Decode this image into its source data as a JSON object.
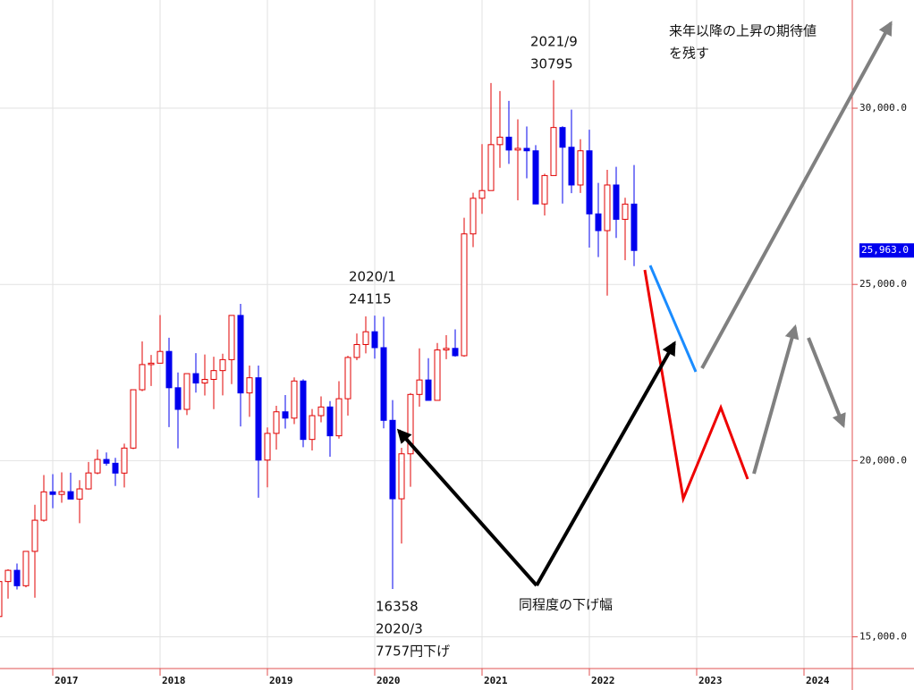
{
  "chart_data": {
    "type": "candlestick",
    "categories": [
      null,
      null,
      null,
      null,
      null,
      null,
      "2017",
      null,
      null,
      null,
      null,
      null,
      null,
      null,
      null,
      null,
      null,
      null,
      "2018",
      null,
      null,
      null,
      null,
      null,
      null,
      null,
      null,
      null,
      null,
      null,
      "2019",
      null,
      null,
      null,
      null,
      null,
      null,
      null,
      null,
      null,
      null,
      null,
      "2020",
      null,
      null,
      null,
      null,
      null,
      null,
      null,
      null,
      null,
      null,
      null,
      "2021",
      null,
      null,
      null,
      null,
      null,
      null,
      null,
      null,
      null,
      null,
      null,
      "2022",
      null,
      null,
      null,
      null,
      null
    ],
    "future_categories": [
      "2023",
      "2024"
    ],
    "open": [
      15576,
      16569,
      16887,
      16450,
      17425,
      18308,
      19114,
      19041,
      19119,
      18909,
      19197,
      19650,
      20033,
      19925,
      19646,
      20356,
      22011,
      22725,
      22765,
      23098,
      22068,
      21454,
      22468,
      22202,
      22305,
      22554,
      22865,
      24120,
      21920,
      22351,
      20015,
      20773,
      21385,
      21206,
      22259,
      20601,
      21276,
      21522,
      20704,
      21756,
      22927,
      23294,
      23657,
      23205,
      21143,
      18917,
      20193,
      21878,
      22288,
      21710,
      23140,
      23185,
      22977,
      26433,
      27444,
      27663,
      28966,
      29178,
      28813,
      28860,
      28791,
      27283,
      28089,
      29452,
      28892,
      27821,
      28791,
      27001,
      26526,
      27821,
      26847,
      27279
    ],
    "high": [
      16938,
      16919,
      17079,
      17425,
      18746,
      19592,
      19615,
      19668,
      19656,
      19445,
      19961,
      20318,
      20230,
      20080,
      20481,
      22011,
      23382,
      23000,
      24129,
      23486,
      22502,
      22467,
      23050,
      23011,
      22949,
      23032,
      24120,
      24448,
      22698,
      22698,
      20940,
      21556,
      21860,
      22362,
      22307,
      21464,
      21823,
      21688,
      22255,
      22974,
      23608,
      24091,
      24115,
      24083,
      21719,
      20365,
      21916,
      23185,
      22906,
      23338,
      23559,
      23725,
      26890,
      27602,
      28979,
      30714,
      30485,
      30208,
      29685,
      29480,
      28952,
      28139,
      30795,
      29489,
      29960,
      29121,
      29388,
      27880,
      28252,
      28338,
      27458,
      28389
    ],
    "low": [
      15106,
      16084,
      16343,
      16406,
      16111,
      18270,
      18650,
      18805,
      19035,
      18225,
      19178,
      19613,
      19856,
      19280,
      19239,
      20327,
      21972,
      22117,
      22765,
      20950,
      20347,
      21292,
      21931,
      21849,
      21462,
      21851,
      22172,
      20971,
      21243,
      18948,
      19241,
      20315,
      20911,
      21036,
      20380,
      20289,
      21086,
      20110,
      20625,
      21276,
      22851,
      23044,
      22893,
      20916,
      16358,
      17646,
      19259,
      21530,
      21710,
      21710,
      22878,
      22948,
      22948,
      26057,
      27002,
      27663,
      28308,
      28419,
      27385,
      28010,
      27272,
      26954,
      28089,
      27293,
      27588,
      27594,
      26044,
      25775,
      24681,
      26319,
      25688,
      25520
    ],
    "close": [
      16569,
      16887,
      16450,
      17425,
      18308,
      19114,
      19041,
      19119,
      18909,
      19197,
      19650,
      20033,
      19925,
      19646,
      20356,
      22011,
      22725,
      22765,
      23098,
      22068,
      21454,
      22468,
      22202,
      22305,
      22554,
      22865,
      24120,
      21920,
      22351,
      20015,
      20773,
      21385,
      21206,
      22259,
      20601,
      21276,
      21522,
      20704,
      21756,
      22927,
      23294,
      23657,
      23205,
      21143,
      18917,
      20193,
      21878,
      22288,
      21710,
      23140,
      23185,
      22977,
      26433,
      27444,
      27663,
      28966,
      29178,
      28813,
      28860,
      28791,
      27283,
      28089,
      29452,
      28892,
      27821,
      28791,
      27001,
      26526,
      27821,
      26847,
      27279,
      25963
    ],
    "up_color": "#e00000",
    "down_color": "#0000ee",
    "ylim": [
      14100,
      33070
    ],
    "yticks": [
      {
        "value": 15000,
        "label": "15,000.0"
      },
      {
        "value": 20000,
        "label": "20,000.0"
      },
      {
        "value": 25000,
        "label": "25,000.0"
      },
      {
        "value": 30000,
        "label": "30,000.0"
      }
    ],
    "grid": true,
    "last_price": {
      "value": 25963,
      "label": "25,963.0"
    },
    "annotations": {
      "peak": [
        "2021/9",
        "30795"
      ],
      "expectation": [
        "来年以降の上昇の期待値",
        "を残す"
      ],
      "jan2020": [
        "2020/1",
        "24115"
      ],
      "covid_low": [
        "16358",
        "2020/3",
        "7757円下げ"
      ],
      "same_drop": "同程度の下げ幅"
    }
  }
}
